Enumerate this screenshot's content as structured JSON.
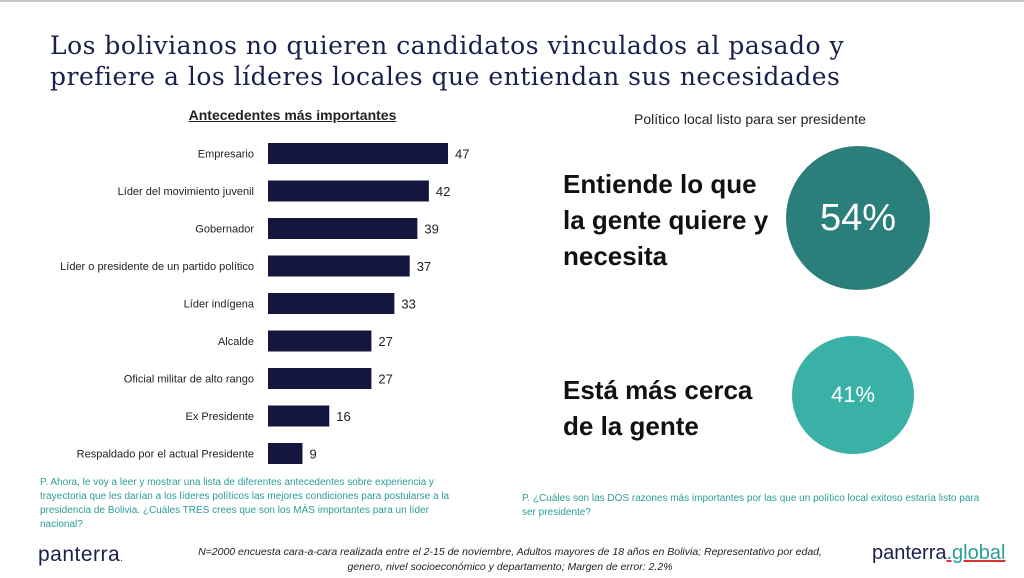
{
  "title": {
    "line1": "Los bolivianos no quieren candidatos vinculados al pasado y",
    "line2": "prefiere a los líderes locales que entiendan sus necesidades"
  },
  "chart_data": {
    "type": "bar",
    "orientation": "horizontal",
    "title": "Antecedentes más importantes",
    "categories": [
      "Empresario",
      "Líder del movimiento juvenil",
      "Gobernador",
      "Líder o presidente de un partido político",
      "Líder indígena",
      "Alcalde",
      "Oficial militar de alto rango",
      "Ex Presidente",
      "Respaldado por el actual Presidente"
    ],
    "values": [
      47,
      42,
      39,
      37,
      33,
      27,
      27,
      16,
      9
    ],
    "xlabel": "",
    "ylabel": "",
    "xlim": [
      0,
      47
    ],
    "grid": false,
    "bar_color": "#14163f"
  },
  "right": {
    "title": "Político local listo para ser presidente",
    "reasons": [
      {
        "text": "Entiende lo que la gente quiere y necesita",
        "value": "54%",
        "color": "#2b7f7a"
      },
      {
        "text": "Está más cerca de la gente",
        "value": "41%",
        "color": "#3ab1a6"
      }
    ]
  },
  "questions": {
    "left": "P. Ahora, le voy a leer y mostrar una lista de diferentes antecedentes sobre experiencia y trayectoria que les darían a los líderes políticos las mejores condiciones para postularse a la presidencia de Bolivia. ¿Cuáles TRES crees que son los MÁS importantes para un líder nacional?",
    "right": "P. ¿Cuáles son las DOS razones más importantes por las que un político local exitoso estaría listo para ser presidente?"
  },
  "footer": {
    "logo_left": "panterra",
    "logo_left_dot": ".",
    "note": "N=2000 encuesta cara-a-cara realizada entre el 2-15 de noviembre, Adultos mayores de 18 años en Bolivia; Representativo por edad, genero, nivel socioeconómico y departamento; Margen de error: 2.2%",
    "logo_right_main": "panterra",
    "logo_right_accent": ".global"
  }
}
